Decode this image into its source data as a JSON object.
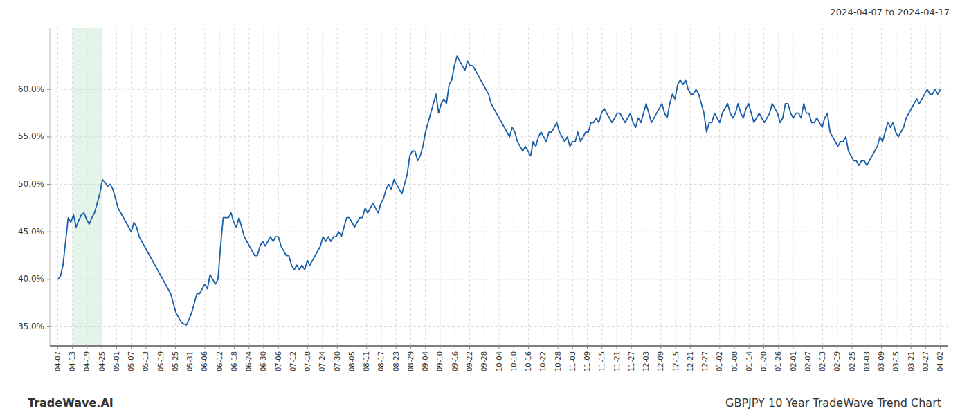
{
  "chart_data": {
    "type": "line",
    "title": "GBPJPY 10 Year TradeWave Trend Chart",
    "subtitle": "2024-04-07 to 2024-04-17",
    "annotations": [
      "TradeWave.AI"
    ],
    "color": "#1a5fa8",
    "grid": true,
    "highlight": {
      "start": "04-13",
      "end": "04-25",
      "color": "#d4edda"
    },
    "ylim": [
      33.0,
      66.5
    ],
    "yticks": [
      {
        "value": 35.0,
        "label": "35.0%"
      },
      {
        "value": 40.0,
        "label": "40.0%"
      },
      {
        "value": 45.0,
        "label": "45.0%"
      },
      {
        "value": 50.0,
        "label": "50.0%"
      },
      {
        "value": 55.0,
        "label": "55.0%"
      },
      {
        "value": 60.0,
        "label": "60.0%"
      }
    ],
    "xlim": [
      -3,
      339
    ],
    "xticks": [
      {
        "value": 0,
        "label": "04-07"
      },
      {
        "value": 5.6,
        "label": "04-13"
      },
      {
        "value": 11.2,
        "label": "04-19"
      },
      {
        "value": 16.8,
        "label": "04-25"
      },
      {
        "value": 22.4,
        "label": "05-01"
      },
      {
        "value": 28,
        "label": "05-07"
      },
      {
        "value": 33.6,
        "label": "05-13"
      },
      {
        "value": 39.2,
        "label": "05-19"
      },
      {
        "value": 44.8,
        "label": "05-25"
      },
      {
        "value": 50.4,
        "label": "05-31"
      },
      {
        "value": 56,
        "label": "06-06"
      },
      {
        "value": 61.6,
        "label": "06-12"
      },
      {
        "value": 67.2,
        "label": "06-18"
      },
      {
        "value": 72.8,
        "label": "06-24"
      },
      {
        "value": 78.4,
        "label": "06-30"
      },
      {
        "value": 84,
        "label": "07-06"
      },
      {
        "value": 89.6,
        "label": "07-12"
      },
      {
        "value": 95.2,
        "label": "07-18"
      },
      {
        "value": 100.8,
        "label": "07-24"
      },
      {
        "value": 106.4,
        "label": "07-30"
      },
      {
        "value": 112,
        "label": "08-05"
      },
      {
        "value": 117.6,
        "label": "08-11"
      },
      {
        "value": 123.2,
        "label": "08-17"
      },
      {
        "value": 128.8,
        "label": "08-23"
      },
      {
        "value": 134.4,
        "label": "08-29"
      },
      {
        "value": 140,
        "label": "09-04"
      },
      {
        "value": 145.6,
        "label": "09-10"
      },
      {
        "value": 151.2,
        "label": "09-16"
      },
      {
        "value": 156.8,
        "label": "09-22"
      },
      {
        "value": 162.4,
        "label": "09-28"
      },
      {
        "value": 168,
        "label": "10-04"
      },
      {
        "value": 173.6,
        "label": "10-10"
      },
      {
        "value": 179.2,
        "label": "10-16"
      },
      {
        "value": 184.8,
        "label": "10-22"
      },
      {
        "value": 190.4,
        "label": "10-28"
      },
      {
        "value": 196,
        "label": "11-03"
      },
      {
        "value": 201.6,
        "label": "11-09"
      },
      {
        "value": 207.2,
        "label": "11-15"
      },
      {
        "value": 212.8,
        "label": "11-21"
      },
      {
        "value": 218.4,
        "label": "11-27"
      },
      {
        "value": 224,
        "label": "12-03"
      },
      {
        "value": 229.6,
        "label": "12-09"
      },
      {
        "value": 235.2,
        "label": "12-15"
      },
      {
        "value": 240.8,
        "label": "12-21"
      },
      {
        "value": 246.4,
        "label": "12-27"
      },
      {
        "value": 252,
        "label": "01-02"
      },
      {
        "value": 257.6,
        "label": "01-08"
      },
      {
        "value": 263.2,
        "label": "01-14"
      },
      {
        "value": 268.8,
        "label": "01-20"
      },
      {
        "value": 274.4,
        "label": "01-26"
      },
      {
        "value": 280,
        "label": "02-01"
      },
      {
        "value": 285.6,
        "label": "02-07"
      },
      {
        "value": 291.2,
        "label": "02-13"
      },
      {
        "value": 296.8,
        "label": "02-19"
      },
      {
        "value": 302.4,
        "label": "02-25"
      },
      {
        "value": 308,
        "label": "03-03"
      },
      {
        "value": 313.6,
        "label": "03-09"
      },
      {
        "value": 319.2,
        "label": "03-15"
      },
      {
        "value": 324.8,
        "label": "03-21"
      },
      {
        "value": 330.4,
        "label": "03-27"
      },
      {
        "value": 336,
        "label": "04-02"
      }
    ],
    "values": [
      40.0,
      40.3,
      41.5,
      44.0,
      46.5,
      46.0,
      46.8,
      45.5,
      46.2,
      46.8,
      47.0,
      46.3,
      45.8,
      46.5,
      47.0,
      48.0,
      49.0,
      50.5,
      50.2,
      49.8,
      50.0,
      49.5,
      48.5,
      47.5,
      47.0,
      46.5,
      46.0,
      45.5,
      45.0,
      46.0,
      45.5,
      44.5,
      44.0,
      43.5,
      43.0,
      42.5,
      42.0,
      41.5,
      41.0,
      40.5,
      40.0,
      39.5,
      39.0,
      38.5,
      37.5,
      36.5,
      36.0,
      35.5,
      35.3,
      35.2,
      35.8,
      36.5,
      37.5,
      38.5,
      38.5,
      39.0,
      39.5,
      39.0,
      40.5,
      40.0,
      39.5,
      40.0,
      43.5,
      46.5,
      46.5,
      46.5,
      47.0,
      46.0,
      45.5,
      46.5,
      45.5,
      44.5,
      44.0,
      43.5,
      43.0,
      42.5,
      42.5,
      43.5,
      44.0,
      43.5,
      44.0,
      44.5,
      44.0,
      44.5,
      44.5,
      43.5,
      43.0,
      42.5,
      42.5,
      41.5,
      41.0,
      41.5,
      41.0,
      41.5,
      41.0,
      42.0,
      41.5,
      42.0,
      42.5,
      43.0,
      43.5,
      44.5,
      44.0,
      44.5,
      44.0,
      44.5,
      44.5,
      45.0,
      44.5,
      45.5,
      46.5,
      46.5,
      46.0,
      45.5,
      46.0,
      46.5,
      46.5,
      47.5,
      47.0,
      47.5,
      48.0,
      47.5,
      47.0,
      48.0,
      48.5,
      49.5,
      50.0,
      49.5,
      50.5,
      50.0,
      49.5,
      49.0,
      50.0,
      51.0,
      53.0,
      53.5,
      53.5,
      52.5,
      53.0,
      54.0,
      55.5,
      56.5,
      57.5,
      58.5,
      59.5,
      57.5,
      58.5,
      59.0,
      58.5,
      60.5,
      61.0,
      62.5,
      63.5,
      63.0,
      62.5,
      62.0,
      63.0,
      62.5,
      62.5,
      62.0,
      61.5,
      61.0,
      60.5,
      60.0,
      59.5,
      58.5,
      58.0,
      57.5,
      57.0,
      56.5,
      56.0,
      55.5,
      55.0,
      56.0,
      55.5,
      54.5,
      54.0,
      53.5,
      54.0,
      53.5,
      53.0,
      54.5,
      54.0,
      55.0,
      55.5,
      55.0,
      54.5,
      55.5,
      55.5,
      56.0,
      56.5,
      55.5,
      55.0,
      54.5,
      55.0,
      54.0,
      54.5,
      54.5,
      55.5,
      54.5,
      55.0,
      55.5,
      55.5,
      56.5,
      56.5,
      57.0,
      56.5,
      57.5,
      58.0,
      57.5,
      57.0,
      56.5,
      57.0,
      57.5,
      57.5,
      57.0,
      56.5,
      57.0,
      57.5,
      56.5,
      56.0,
      57.0,
      56.5,
      57.5,
      58.5,
      57.5,
      56.5,
      57.0,
      57.5,
      58.0,
      58.5,
      57.5,
      57.0,
      58.5,
      59.5,
      59.0,
      60.5,
      61.0,
      60.5,
      61.0,
      60.0,
      59.5,
      59.5,
      60.0,
      59.5,
      58.5,
      57.5,
      55.5,
      56.5,
      56.5,
      57.5,
      57.0,
      56.5,
      57.5,
      58.0,
      58.5,
      57.5,
      57.0,
      57.5,
      58.5,
      57.5,
      57.0,
      58.0,
      58.5,
      57.5,
      56.5,
      57.0,
      57.5,
      57.0,
      56.5,
      57.0,
      57.5,
      58.5,
      58.0,
      57.5,
      56.5,
      57.0,
      58.5,
      58.5,
      57.5,
      57.0,
      57.5,
      57.5,
      57.0,
      58.5,
      57.5,
      57.5,
      56.5,
      56.5,
      57.0,
      56.5,
      56.0,
      57.0,
      57.5,
      55.5,
      55.0,
      54.5,
      54.0,
      54.5,
      54.5,
      55.0,
      53.5,
      53.0,
      52.5,
      52.5,
      52.0,
      52.5,
      52.5,
      52.0,
      52.5,
      53.0,
      53.5,
      54.0,
      55.0,
      54.5,
      55.5,
      56.5,
      56.0,
      56.5,
      55.5,
      55.0,
      55.5,
      56.0,
      57.0,
      57.5,
      58.0,
      58.5,
      59.0,
      58.5,
      59.0,
      59.5,
      60.0,
      59.5,
      59.5,
      60.0,
      59.5,
      60.0
    ]
  }
}
